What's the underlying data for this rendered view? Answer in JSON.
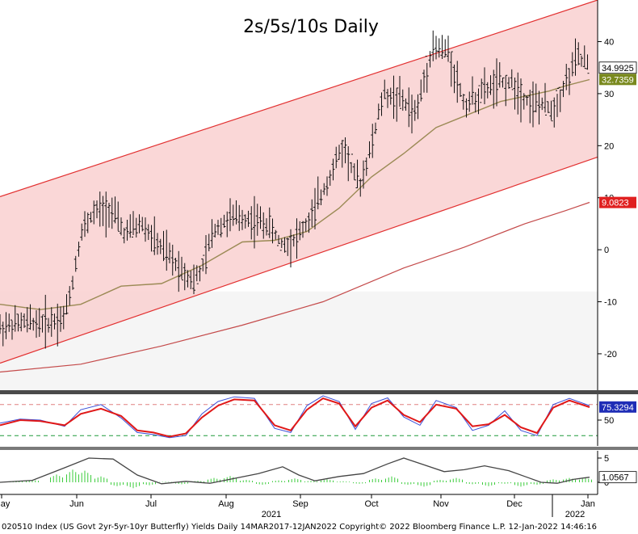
{
  "chart_data": [
    {
      "type": "line",
      "title": "2s/5s/10s Daily",
      "xlabel": "",
      "ylabel": "",
      "ylim": [
        -27,
        48
      ],
      "y_ticks": [
        40,
        30,
        20,
        10,
        0,
        -10,
        -20
      ],
      "y_tick_labels": [
        "40",
        "30",
        "20",
        "10",
        "0",
        "-10",
        "-20"
      ],
      "x_ticks": [
        "May",
        "Jun",
        "Jul",
        "Aug",
        "Sep",
        "Oct",
        "Nov",
        "Dec",
        "Jan"
      ],
      "x_year_labels": [
        "2021",
        "2022"
      ],
      "last_values": {
        "price": "34.9925",
        "ma_short": "32.7359",
        "ma_long": "9.0823"
      },
      "channel": {
        "upper": [
          [
            0,
            10.2
          ],
          [
            148,
            48.0
          ]
        ],
        "lower": [
          [
            0,
            -21.8
          ],
          [
            148,
            17.8
          ]
        ],
        "fill": "#f9d0d0",
        "line_color": "#e23030"
      },
      "colors": {
        "price": "#000000",
        "ma_short": "#9b8a55",
        "ma_long": "#c44a4a",
        "badge_price_bg": "#ffffff",
        "badge_ma_short_bg": "#7a8a1f",
        "badge_ma_long_bg": "#e02020",
        "background_lower": "#f1f1f1"
      },
      "series": [
        {
          "role": "price",
          "points": [
            [
              0,
              -15
            ],
            [
              6,
              -14
            ],
            [
              12,
              -14
            ],
            [
              16,
              -13
            ],
            [
              18,
              -6
            ],
            [
              20,
              3
            ],
            [
              23,
              7
            ],
            [
              27,
              8
            ],
            [
              31,
              3
            ],
            [
              35,
              5
            ],
            [
              39,
              1
            ],
            [
              44,
              -3
            ],
            [
              48,
              -6
            ],
            [
              50,
              -4
            ],
            [
              53,
              4
            ],
            [
              57,
              6
            ],
            [
              61,
              6
            ],
            [
              66,
              5
            ],
            [
              70,
              1
            ],
            [
              73,
              2
            ],
            [
              77,
              6
            ],
            [
              81,
              13
            ],
            [
              85,
              20
            ],
            [
              89,
              12
            ],
            [
              92,
              20
            ],
            [
              95,
              30
            ],
            [
              99,
              29
            ],
            [
              103,
              26
            ],
            [
              107,
              39
            ],
            [
              111,
              38
            ],
            [
              115,
              28
            ],
            [
              119,
              30
            ],
            [
              123,
              32
            ],
            [
              127,
              32
            ],
            [
              130,
              29
            ],
            [
              133,
              28
            ],
            [
              137,
              27
            ],
            [
              140,
              32
            ],
            [
              143,
              37
            ],
            [
              145,
              36
            ],
            [
              146,
              35
            ]
          ]
        },
        {
          "role": "ma_short",
          "points": [
            [
              0,
              -10.5
            ],
            [
              10,
              -11.5
            ],
            [
              20,
              -10.5
            ],
            [
              30,
              -7
            ],
            [
              40,
              -6.5
            ],
            [
              50,
              -3
            ],
            [
              60,
              1.5
            ],
            [
              68,
              1.8
            ],
            [
              76,
              3.5
            ],
            [
              84,
              8
            ],
            [
              92,
              14
            ],
            [
              100,
              18.5
            ],
            [
              108,
              23.5
            ],
            [
              116,
              26
            ],
            [
              124,
              28.5
            ],
            [
              130,
              29.5
            ],
            [
              136,
              30.5
            ],
            [
              140,
              31.5
            ],
            [
              146,
              32.7
            ]
          ]
        },
        {
          "role": "ma_long",
          "points": [
            [
              0,
              -23.5
            ],
            [
              20,
              -22
            ],
            [
              40,
              -18.5
            ],
            [
              60,
              -14.5
            ],
            [
              80,
              -10
            ],
            [
              100,
              -3.5
            ],
            [
              115,
              0.5
            ],
            [
              130,
              5
            ],
            [
              140,
              7.5
            ],
            [
              146,
              9.1
            ]
          ]
        }
      ]
    },
    {
      "type": "line",
      "ylim": [
        0,
        100
      ],
      "y_ticks": [
        50
      ],
      "y_tick_labels": [
        "50"
      ],
      "last_value": "75.3294",
      "ref_lines": [
        80,
        20
      ],
      "colors": {
        "k": "#e01818",
        "d": "#3b4fd8",
        "badge_bg": "#1f2db6",
        "ref_top": "#e08080",
        "ref_bottom": "#1e9a3a"
      },
      "series": [
        {
          "role": "k",
          "points": [
            [
              0,
              40
            ],
            [
              5,
              50
            ],
            [
              10,
              48
            ],
            [
              16,
              40
            ],
            [
              20,
              62
            ],
            [
              25,
              72
            ],
            [
              30,
              58
            ],
            [
              34,
              30
            ],
            [
              38,
              26
            ],
            [
              42,
              18
            ],
            [
              46,
              24
            ],
            [
              50,
              55
            ],
            [
              54,
              78
            ],
            [
              58,
              90
            ],
            [
              63,
              88
            ],
            [
              68,
              40
            ],
            [
              72,
              30
            ],
            [
              76,
              70
            ],
            [
              80,
              92
            ],
            [
              84,
              82
            ],
            [
              88,
              38
            ],
            [
              92,
              74
            ],
            [
              96,
              88
            ],
            [
              100,
              60
            ],
            [
              104,
              46
            ],
            [
              108,
              80
            ],
            [
              113,
              72
            ],
            [
              117,
              38
            ],
            [
              121,
              42
            ],
            [
              125,
              60
            ],
            [
              129,
              36
            ],
            [
              133,
              25
            ],
            [
              137,
              74
            ],
            [
              141,
              88
            ],
            [
              146,
              75
            ]
          ]
        },
        {
          "role": "d",
          "points": [
            [
              0,
              44
            ],
            [
              5,
              52
            ],
            [
              10,
              50
            ],
            [
              16,
              38
            ],
            [
              20,
              70
            ],
            [
              25,
              80
            ],
            [
              30,
              54
            ],
            [
              34,
              26
            ],
            [
              38,
              22
            ],
            [
              42,
              16
            ],
            [
              46,
              20
            ],
            [
              50,
              62
            ],
            [
              54,
              86
            ],
            [
              58,
              95
            ],
            [
              63,
              92
            ],
            [
              68,
              34
            ],
            [
              72,
              26
            ],
            [
              76,
              78
            ],
            [
              80,
              97
            ],
            [
              84,
              86
            ],
            [
              88,
              32
            ],
            [
              92,
              82
            ],
            [
              96,
              93
            ],
            [
              100,
              56
            ],
            [
              104,
              40
            ],
            [
              108,
              88
            ],
            [
              113,
              74
            ],
            [
              117,
              30
            ],
            [
              121,
              40
            ],
            [
              125,
              68
            ],
            [
              129,
              30
            ],
            [
              133,
              20
            ],
            [
              137,
              80
            ],
            [
              141,
              92
            ],
            [
              146,
              78
            ]
          ]
        }
      ]
    },
    {
      "type": "bar",
      "ylim": [
        -2.5,
        6.5
      ],
      "y_ticks": [
        5,
        0
      ],
      "y_tick_labels": [
        "5",
        "0"
      ],
      "last_value": "1.0567",
      "colors": {
        "line": "#444444",
        "bars": "#3bcc3b",
        "badge_bg": "#ffffff"
      },
      "line_points": [
        [
          0,
          0
        ],
        [
          8,
          0.4
        ],
        [
          16,
          3
        ],
        [
          22,
          5
        ],
        [
          28,
          4.8
        ],
        [
          34,
          1.5
        ],
        [
          40,
          -0.3
        ],
        [
          46,
          0.2
        ],
        [
          52,
          -0.2
        ],
        [
          58,
          0.8
        ],
        [
          64,
          1.8
        ],
        [
          70,
          3.2
        ],
        [
          74,
          1.5
        ],
        [
          78,
          0.3
        ],
        [
          84,
          1.2
        ],
        [
          90,
          1.8
        ],
        [
          96,
          3.8
        ],
        [
          100,
          5
        ],
        [
          105,
          3.6
        ],
        [
          110,
          2.2
        ],
        [
          115,
          2.6
        ],
        [
          120,
          3.4
        ],
        [
          126,
          2.4
        ],
        [
          130,
          1.2
        ],
        [
          134,
          0
        ],
        [
          138,
          -0.2
        ],
        [
          142,
          0.6
        ],
        [
          146,
          1.05
        ]
      ],
      "hist": [
        [
          4,
          0.3
        ],
        [
          8,
          0.5
        ],
        [
          14,
          1.6
        ],
        [
          18,
          2.6
        ],
        [
          21,
          2.4
        ],
        [
          25,
          1.2
        ],
        [
          29,
          -0.8
        ],
        [
          33,
          -1.2
        ],
        [
          37,
          -0.6
        ],
        [
          41,
          0.1
        ],
        [
          45,
          -0.4
        ],
        [
          49,
          0.3
        ],
        [
          53,
          0.9
        ],
        [
          57,
          1.3
        ],
        [
          61,
          0.5
        ],
        [
          65,
          -0.5
        ],
        [
          69,
          0.4
        ],
        [
          73,
          0.8
        ],
        [
          77,
          0.3
        ],
        [
          81,
          0.6
        ],
        [
          85,
          0.2
        ],
        [
          89,
          -0.3
        ],
        [
          93,
          0.8
        ],
        [
          97,
          1.2
        ],
        [
          101,
          -0.5
        ],
        [
          105,
          -0.9
        ],
        [
          109,
          0.5
        ],
        [
          113,
          0.9
        ],
        [
          117,
          -0.4
        ],
        [
          121,
          -0.8
        ],
        [
          125,
          -0.3
        ],
        [
          129,
          -0.9
        ],
        [
          133,
          -0.5
        ],
        [
          137,
          0.6
        ],
        [
          141,
          0.9
        ],
        [
          145,
          0.9
        ]
      ]
    }
  ],
  "footer": "020510 Index (US Govt 2yr-5yr-10yr Butterfly) Yields  Daily 14MAR2017-12JAN2022   Copyright© 2022 Bloomberg Finance L.P.   12-Jan-2022 14:46:16"
}
